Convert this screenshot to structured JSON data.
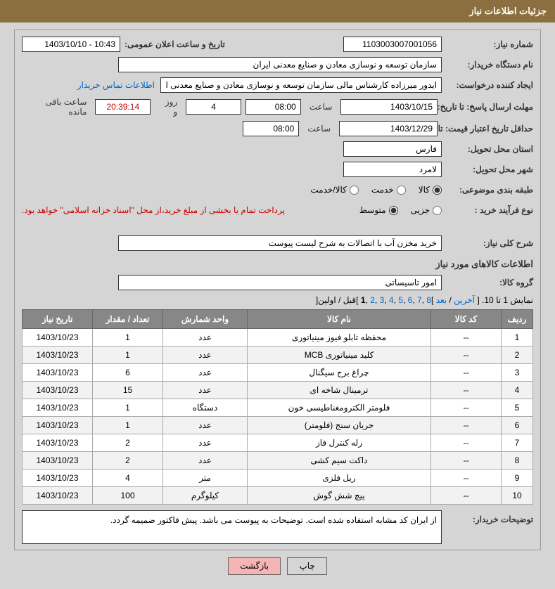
{
  "header": {
    "title": "جزئیات اطلاعات نیاز"
  },
  "fields": {
    "need_no_label": "شماره نیاز:",
    "need_no": "1103003007001056",
    "public_date_label": "تاریخ و ساعت اعلان عمومی:",
    "public_date": "10:43 - 1403/10/10",
    "buyer_org_label": "نام دستگاه خریدار:",
    "buyer_org": "سازمان توسعه و نوسازی معادن و صنایع معدنی ایران",
    "requester_label": "ایجاد کننده درخواست:",
    "requester": "ایدور میرزاده  کارشناس مالی   سازمان توسعه و نوسازی معادن و صنایع معدنی ا",
    "buyer_contact_link": "اطلاعات تماس خریدار",
    "resp_deadline_label": "مهلت ارسال پاسخ:  تا تاریخ:",
    "resp_deadline_date": "1403/10/15",
    "resp_deadline_time_label": "ساعت",
    "resp_deadline_time": "08:00",
    "days_remaining": "4",
    "days_remaining_label": "روز و",
    "time_remaining": "20:39:14",
    "time_remaining_label": "ساعت باقی مانده",
    "validity_label": "حداقل تاریخ اعتبار قیمت:  تا تاریخ:",
    "validity_date": "1403/12/29",
    "validity_time_label": "ساعت",
    "validity_time": "08:00",
    "province_label": "استان محل تحویل:",
    "province": "فارس",
    "city_label": "شهر محل تحویل:",
    "city": "لامرد",
    "category_label": "طبقه بندی موضوعی:",
    "process_type_label": "نوع فرآیند خرید :",
    "payment_note": "پرداخت تمام یا بخشی از مبلغ خرید،از محل \"اسناد خزانه اسلامی\" خواهد بود.",
    "need_desc_label": "شرح کلی نیاز:",
    "need_desc": "خرید مخزن آب با اتصالات به شرح لیست پیوست",
    "goods_info_title": "اطلاعات کالاهای مورد نیاز",
    "goods_group_label": "گروه کالا:",
    "goods_group": "امور تاسیساتی",
    "buyer_notes_label": "توضیحات خریدار:",
    "buyer_notes": "از ایران کد مشابه استفاده شده است. توضیحات به پیوست می باشد. پیش فاکتور ضمیمه گردد."
  },
  "radios": {
    "category": {
      "options": [
        {
          "label": "کالا",
          "checked": true
        },
        {
          "label": "خدمت",
          "checked": false
        },
        {
          "label": "کالا/خدمت",
          "checked": false
        }
      ]
    },
    "process": {
      "options": [
        {
          "label": "جزیی",
          "checked": false
        },
        {
          "label": "متوسط",
          "checked": true
        }
      ]
    }
  },
  "pagination": {
    "text_prefix": "نمایش 1 تا 10. [ ",
    "last": "آخرین",
    "sep1": " / ",
    "next": "بعد",
    "pages": [
      "8",
      "7",
      "6",
      "5",
      "4",
      "3",
      "2"
    ],
    "current": "1",
    "sep2": " ,",
    "suffix": " ]قبل / اولین["
  },
  "table": {
    "headers": {
      "row": "ردیف",
      "code": "کد کالا",
      "name": "نام کالا",
      "unit": "واحد شمارش",
      "qty": "تعداد / مقدار",
      "date": "تاریخ نیاز"
    },
    "rows": [
      {
        "n": "1",
        "code": "--",
        "name": "محفظه تابلو فیوز مینیاتوری",
        "unit": "عدد",
        "qty": "1",
        "date": "1403/10/23"
      },
      {
        "n": "2",
        "code": "--",
        "name": "کلید مینیاتوری MCB",
        "unit": "عدد",
        "qty": "1",
        "date": "1403/10/23"
      },
      {
        "n": "3",
        "code": "--",
        "name": "چراغ برج سیگنال",
        "unit": "عدد",
        "qty": "6",
        "date": "1403/10/23"
      },
      {
        "n": "4",
        "code": "--",
        "name": "ترمینال شاخه ای",
        "unit": "عدد",
        "qty": "15",
        "date": "1403/10/23"
      },
      {
        "n": "5",
        "code": "--",
        "name": "فلومتر الکترومغناطیسی خون",
        "unit": "دستگاه",
        "qty": "1",
        "date": "1403/10/23"
      },
      {
        "n": "6",
        "code": "--",
        "name": "جریان سنج (فلومتر)",
        "unit": "عدد",
        "qty": "1",
        "date": "1403/10/23"
      },
      {
        "n": "7",
        "code": "--",
        "name": "رله کنترل فاز",
        "unit": "عدد",
        "qty": "2",
        "date": "1403/10/23"
      },
      {
        "n": "8",
        "code": "--",
        "name": "داکت سیم کشی",
        "unit": "عدد",
        "qty": "2",
        "date": "1403/10/23"
      },
      {
        "n": "9",
        "code": "--",
        "name": "ریل فلزی",
        "unit": "متر",
        "qty": "4",
        "date": "1403/10/23"
      },
      {
        "n": "10",
        "code": "--",
        "name": "پیچ شش گوش",
        "unit": "کیلوگرم",
        "qty": "100",
        "date": "1403/10/23"
      }
    ]
  },
  "buttons": {
    "print": "چاپ",
    "back": "بازگشت"
  },
  "colors": {
    "header_bg": "#8b6f3e",
    "panel_bg": "#d5d5d5",
    "th_bg": "#878787",
    "link": "#0066cc",
    "error": "#cc0000",
    "back_btn": "#f5b5b5"
  }
}
